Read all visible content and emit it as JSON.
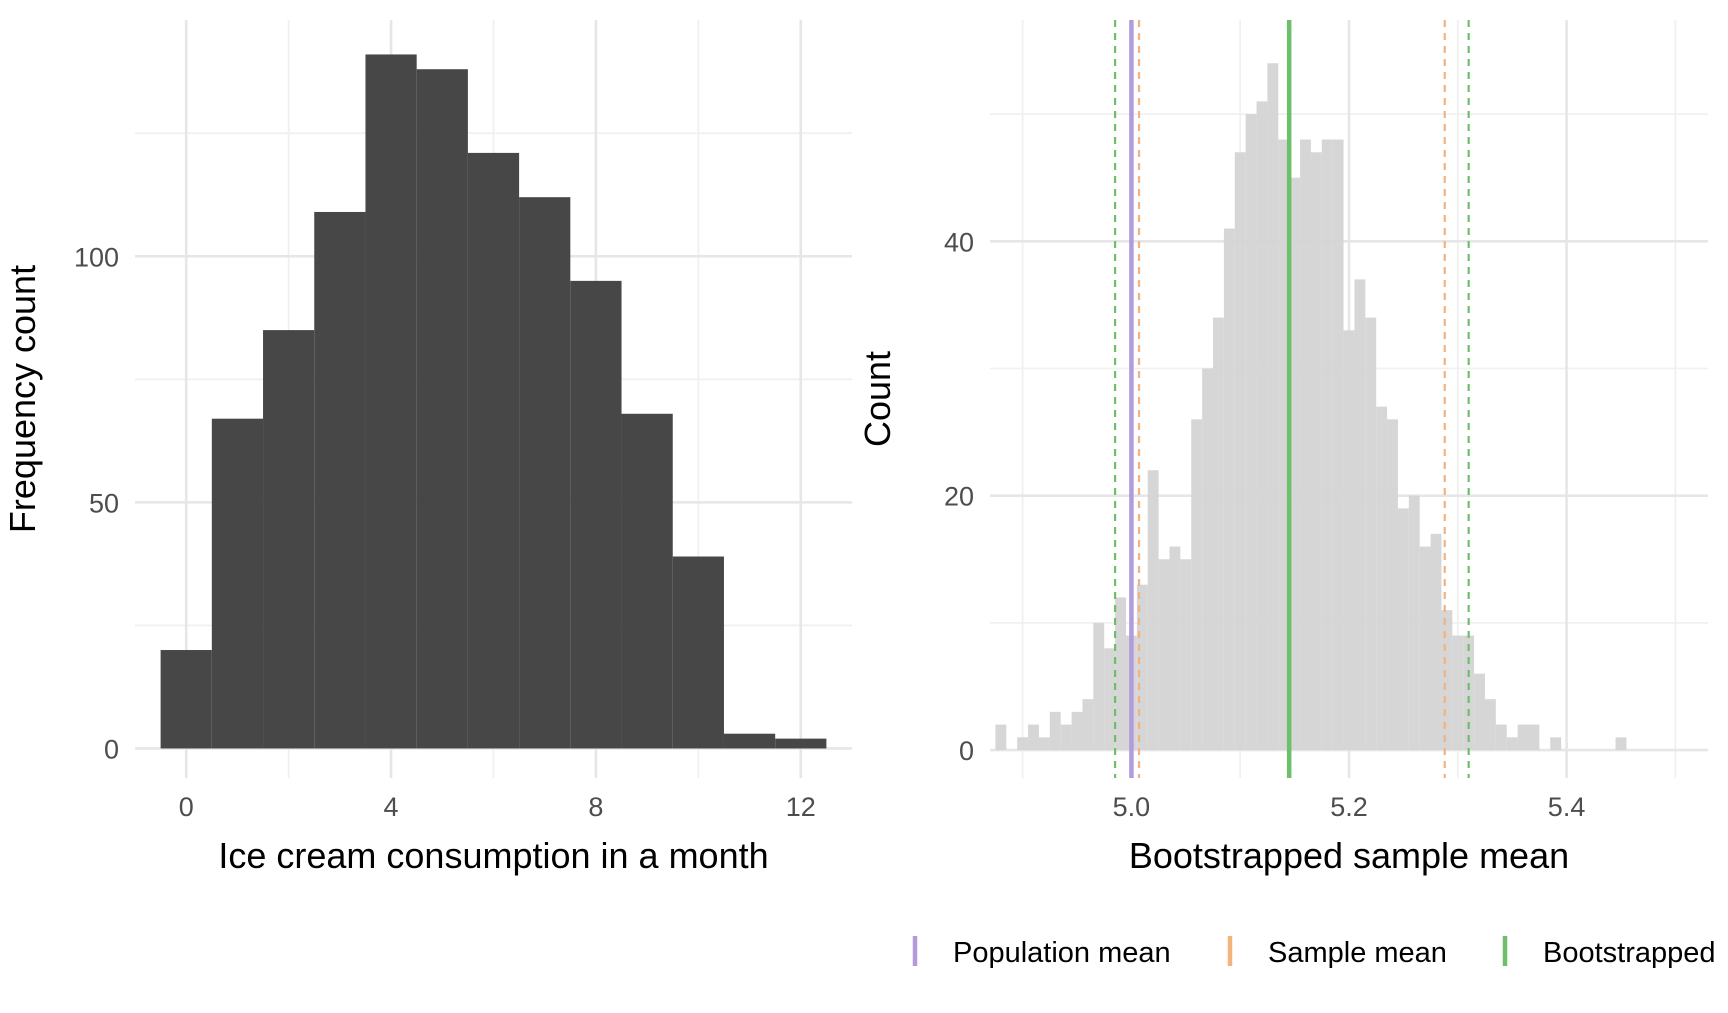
{
  "chart_data": [
    {
      "type": "bar",
      "subtype": "histogram",
      "xlabel": "Ice cream consumption in a month",
      "ylabel": "Frequency count",
      "x_ticks": [
        "0",
        "4",
        "8",
        "12"
      ],
      "y_ticks": [
        "0",
        "50",
        "100"
      ],
      "xlim": [
        -1,
        13
      ],
      "ylim": [
        -6,
        148
      ],
      "bin_width": 1,
      "bars": [
        {
          "x": 0,
          "count": 20
        },
        {
          "x": 1,
          "count": 67
        },
        {
          "x": 2,
          "count": 85
        },
        {
          "x": 3,
          "count": 109
        },
        {
          "x": 4,
          "count": 141
        },
        {
          "x": 5,
          "count": 138
        },
        {
          "x": 6,
          "count": 121
        },
        {
          "x": 7,
          "count": 112
        },
        {
          "x": 8,
          "count": 95
        },
        {
          "x": 9,
          "count": 68
        },
        {
          "x": 10,
          "count": 39
        },
        {
          "x": 11,
          "count": 3
        },
        {
          "x": 12,
          "count": 2
        }
      ],
      "fill_color": "#474747",
      "grid": true
    },
    {
      "type": "bar",
      "subtype": "histogram",
      "xlabel": "Bootstrapped sample mean",
      "ylabel": "Count",
      "x_ticks": [
        "5.0",
        "5.2",
        "5.4"
      ],
      "y_ticks": [
        "0",
        "20",
        "40"
      ],
      "xlim": [
        4.87,
        5.53
      ],
      "ylim": [
        -2.2,
        57.4
      ],
      "bin_width": 0.01,
      "bars": [
        {
          "x": 4.88,
          "count": 2
        },
        {
          "x": 4.89,
          "count": 0
        },
        {
          "x": 4.9,
          "count": 1
        },
        {
          "x": 4.91,
          "count": 2
        },
        {
          "x": 4.92,
          "count": 1
        },
        {
          "x": 4.93,
          "count": 3
        },
        {
          "x": 4.94,
          "count": 2
        },
        {
          "x": 4.95,
          "count": 3
        },
        {
          "x": 4.96,
          "count": 4
        },
        {
          "x": 4.97,
          "count": 10
        },
        {
          "x": 4.98,
          "count": 8
        },
        {
          "x": 4.99,
          "count": 12
        },
        {
          "x": 5.0,
          "count": 9
        },
        {
          "x": 5.01,
          "count": 13
        },
        {
          "x": 5.02,
          "count": 22
        },
        {
          "x": 5.03,
          "count": 15
        },
        {
          "x": 5.04,
          "count": 16
        },
        {
          "x": 5.05,
          "count": 15
        },
        {
          "x": 5.06,
          "count": 26
        },
        {
          "x": 5.07,
          "count": 30
        },
        {
          "x": 5.08,
          "count": 34
        },
        {
          "x": 5.09,
          "count": 41
        },
        {
          "x": 5.1,
          "count": 47
        },
        {
          "x": 5.11,
          "count": 50
        },
        {
          "x": 5.12,
          "count": 51
        },
        {
          "x": 5.13,
          "count": 54
        },
        {
          "x": 5.14,
          "count": 48
        },
        {
          "x": 5.15,
          "count": 45
        },
        {
          "x": 5.16,
          "count": 48
        },
        {
          "x": 5.17,
          "count": 47
        },
        {
          "x": 5.18,
          "count": 48
        },
        {
          "x": 5.19,
          "count": 48
        },
        {
          "x": 5.2,
          "count": 33
        },
        {
          "x": 5.21,
          "count": 37
        },
        {
          "x": 5.22,
          "count": 34
        },
        {
          "x": 5.23,
          "count": 27
        },
        {
          "x": 5.24,
          "count": 26
        },
        {
          "x": 5.25,
          "count": 19
        },
        {
          "x": 5.26,
          "count": 20
        },
        {
          "x": 5.27,
          "count": 16
        },
        {
          "x": 5.28,
          "count": 17
        },
        {
          "x": 5.29,
          "count": 11
        },
        {
          "x": 5.3,
          "count": 9
        },
        {
          "x": 5.31,
          "count": 9
        },
        {
          "x": 5.32,
          "count": 6
        },
        {
          "x": 5.33,
          "count": 4
        },
        {
          "x": 5.34,
          "count": 2
        },
        {
          "x": 5.35,
          "count": 1
        },
        {
          "x": 5.36,
          "count": 2
        },
        {
          "x": 5.37,
          "count": 2
        },
        {
          "x": 5.38,
          "count": 0
        },
        {
          "x": 5.39,
          "count": 1
        },
        {
          "x": 5.45,
          "count": 1
        }
      ],
      "fill_color": "#d4d4d4",
      "grid": true,
      "reference_lines": [
        {
          "series": "Population mean",
          "x": 5.0,
          "style": "solid",
          "color": "#b19cd9"
        },
        {
          "series": "Sample mean",
          "x": 5.007,
          "style": "dashed",
          "color": "#f4b27c"
        },
        {
          "series": "Sample mean",
          "x": 5.288,
          "style": "dashed",
          "color": "#f4b27c"
        },
        {
          "series": "Bootstrapped",
          "x": 5.145,
          "style": "solid",
          "color": "#6dbf6a"
        },
        {
          "series": "Bootstrapped",
          "x": 4.985,
          "style": "dashed",
          "color": "#6dbf6a"
        },
        {
          "series": "Bootstrapped",
          "x": 5.31,
          "style": "dashed",
          "color": "#6dbf6a"
        }
      ],
      "legend": {
        "placement": "bottom",
        "items": [
          {
            "label": "Population mean",
            "color": "#b19cd9"
          },
          {
            "label": "Sample mean",
            "color": "#f4b27c"
          },
          {
            "label": "Bootstrapped",
            "color": "#6dbf6a"
          }
        ]
      }
    }
  ]
}
